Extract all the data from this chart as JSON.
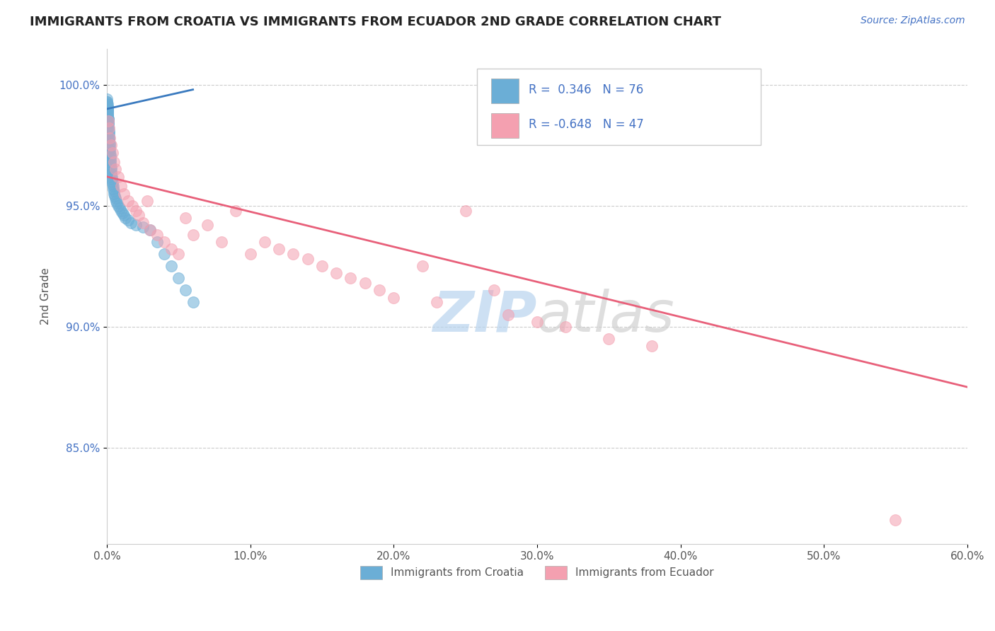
{
  "title": "IMMIGRANTS FROM CROATIA VS IMMIGRANTS FROM ECUADOR 2ND GRADE CORRELATION CHART",
  "source": "Source: ZipAtlas.com",
  "ylabel": "2nd Grade",
  "xlim": [
    0.0,
    60.0
  ],
  "ylim": [
    81.0,
    101.5
  ],
  "yticks": [
    85.0,
    90.0,
    95.0,
    100.0
  ],
  "ytick_labels": [
    "85.0%",
    "90.0%",
    "95.0%",
    "100.0%"
  ],
  "xtick_labels": [
    "0.0%",
    "10.0%",
    "20.0%",
    "30.0%",
    "40.0%",
    "50.0%",
    "60.0%"
  ],
  "xticks": [
    0,
    10,
    20,
    30,
    40,
    50,
    60
  ],
  "croatia_color": "#6baed6",
  "ecuador_color": "#f4a0b0",
  "croatia_R": 0.346,
  "croatia_N": 76,
  "ecuador_R": -0.648,
  "ecuador_N": 47,
  "legend_label_croatia": "Immigrants from Croatia",
  "legend_label_ecuador": "Immigrants from Ecuador",
  "background_color": "#ffffff",
  "grid_color": "#cccccc",
  "trend_line_croatia_color": "#3a7abf",
  "trend_line_ecuador_color": "#e8607a",
  "croatia_scatter_x": [
    0.02,
    0.03,
    0.04,
    0.05,
    0.06,
    0.07,
    0.08,
    0.09,
    0.1,
    0.11,
    0.12,
    0.13,
    0.14,
    0.15,
    0.16,
    0.17,
    0.18,
    0.19,
    0.2,
    0.21,
    0.22,
    0.23,
    0.24,
    0.25,
    0.26,
    0.27,
    0.28,
    0.29,
    0.3,
    0.32,
    0.34,
    0.36,
    0.38,
    0.4,
    0.42,
    0.45,
    0.48,
    0.5,
    0.55,
    0.6,
    0.65,
    0.7,
    0.8,
    0.9,
    1.0,
    1.1,
    1.2,
    1.3,
    1.5,
    1.7,
    2.0,
    2.5,
    3.0,
    0.01,
    0.01,
    0.02,
    0.02,
    0.03,
    0.03,
    0.04,
    0.04,
    0.05,
    0.05,
    0.06,
    0.06,
    0.07,
    0.07,
    0.08,
    0.08,
    0.09,
    3.5,
    4.0,
    4.5,
    5.0,
    5.5,
    6.0
  ],
  "croatia_scatter_y": [
    99.0,
    99.1,
    98.8,
    99.2,
    98.9,
    98.7,
    98.5,
    98.6,
    98.4,
    98.3,
    98.2,
    98.1,
    98.0,
    97.9,
    97.8,
    97.7,
    97.6,
    97.5,
    97.4,
    97.3,
    97.2,
    97.1,
    97.0,
    96.9,
    96.8,
    96.7,
    96.6,
    96.5,
    96.4,
    96.3,
    96.2,
    96.1,
    96.0,
    95.9,
    95.8,
    95.7,
    95.6,
    95.5,
    95.4,
    95.3,
    95.2,
    95.1,
    95.0,
    94.9,
    94.8,
    94.7,
    94.6,
    94.5,
    94.4,
    94.3,
    94.2,
    94.1,
    94.0,
    99.3,
    99.4,
    99.2,
    99.3,
    99.1,
    99.0,
    98.9,
    98.8,
    99.0,
    98.9,
    98.7,
    98.8,
    98.6,
    98.7,
    98.5,
    98.6,
    98.4,
    93.5,
    93.0,
    92.5,
    92.0,
    91.5,
    91.0
  ],
  "ecuador_scatter_x": [
    0.1,
    0.15,
    0.2,
    0.3,
    0.4,
    0.5,
    0.6,
    0.8,
    1.0,
    1.2,
    1.5,
    1.8,
    2.0,
    2.2,
    2.5,
    3.0,
    3.5,
    4.0,
    4.5,
    5.0,
    5.5,
    6.0,
    7.0,
    8.0,
    9.0,
    10.0,
    11.0,
    12.0,
    13.0,
    14.0,
    15.0,
    16.0,
    17.0,
    18.0,
    19.0,
    20.0,
    22.0,
    23.0,
    25.0,
    27.0,
    28.0,
    30.0,
    32.0,
    35.0,
    38.0,
    55.0,
    2.8
  ],
  "ecuador_scatter_y": [
    98.5,
    98.2,
    97.8,
    97.5,
    97.2,
    96.8,
    96.5,
    96.2,
    95.8,
    95.5,
    95.2,
    95.0,
    94.8,
    94.6,
    94.3,
    94.0,
    93.8,
    93.5,
    93.2,
    93.0,
    94.5,
    93.8,
    94.2,
    93.5,
    94.8,
    93.0,
    93.5,
    93.2,
    93.0,
    92.8,
    92.5,
    92.2,
    92.0,
    91.8,
    91.5,
    91.2,
    92.5,
    91.0,
    94.8,
    91.5,
    90.5,
    90.2,
    90.0,
    89.5,
    89.2,
    82.0,
    95.2
  ],
  "ecuador_trend_x0": 0.0,
  "ecuador_trend_x1": 60.0,
  "ecuador_trend_y0": 96.2,
  "ecuador_trend_y1": 87.5,
  "croatia_trend_x0": 0.0,
  "croatia_trend_x1": 6.0,
  "croatia_trend_y0": 99.0,
  "croatia_trend_y1": 99.8
}
